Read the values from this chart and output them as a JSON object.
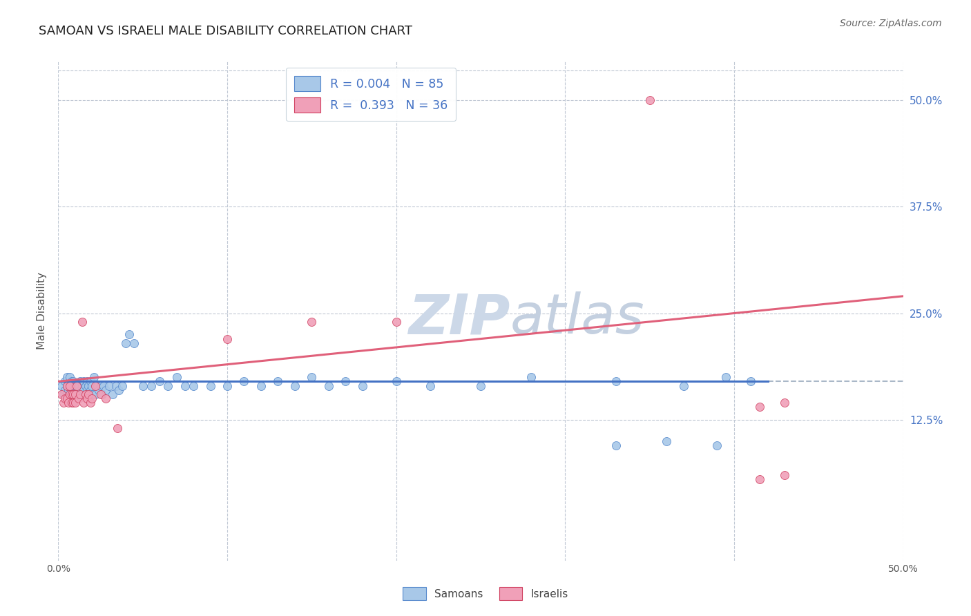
{
  "title": "SAMOAN VS ISRAELI MALE DISABILITY CORRELATION CHART",
  "source": "Source: ZipAtlas.com",
  "ylabel": "Male Disability",
  "legend_samoans": "Samoans",
  "legend_israelis": "Israelis",
  "samoan_R": 0.004,
  "samoan_N": 85,
  "israeli_R": 0.393,
  "israeli_N": 36,
  "samoan_color": "#a8c8e8",
  "israeli_color": "#f0a0b8",
  "samoan_line_color": "#4472c4",
  "israeli_line_color": "#e0607a",
  "samoan_edge_color": "#5588cc",
  "israeli_edge_color": "#d04060",
  "watermark_zip_color": "#c8d8e8",
  "watermark_atlas_color": "#c0d0e0",
  "background_color": "#ffffff",
  "grid_color": "#c0c8d4",
  "right_label_color": "#4472c4",
  "xmin": 0.0,
  "xmax": 0.5,
  "ymin": -0.04,
  "ymax": 0.545,
  "yticks": [
    0.125,
    0.25,
    0.375,
    0.5
  ],
  "ytick_labels": [
    "12.5%",
    "25.0%",
    "37.5%",
    "50.0%"
  ],
  "samoan_line_y0": 0.17,
  "samoan_line_y1": 0.17,
  "israeli_line_y0": 0.17,
  "israeli_line_y1": 0.27,
  "samoan_x": [
    0.002,
    0.003,
    0.004,
    0.004,
    0.005,
    0.005,
    0.005,
    0.006,
    0.006,
    0.007,
    0.007,
    0.007,
    0.008,
    0.008,
    0.008,
    0.009,
    0.009,
    0.009,
    0.01,
    0.01,
    0.01,
    0.011,
    0.011,
    0.012,
    0.012,
    0.013,
    0.013,
    0.014,
    0.014,
    0.015,
    0.015,
    0.016,
    0.016,
    0.017,
    0.017,
    0.018,
    0.018,
    0.019,
    0.019,
    0.02,
    0.02,
    0.021,
    0.022,
    0.023,
    0.024,
    0.025,
    0.026,
    0.027,
    0.028,
    0.03,
    0.032,
    0.034,
    0.036,
    0.038,
    0.04,
    0.042,
    0.045,
    0.05,
    0.055,
    0.06,
    0.065,
    0.07,
    0.075,
    0.08,
    0.09,
    0.1,
    0.11,
    0.12,
    0.13,
    0.14,
    0.15,
    0.16,
    0.17,
    0.18,
    0.2,
    0.22,
    0.25,
    0.28,
    0.33,
    0.37,
    0.395,
    0.41,
    0.33,
    0.36,
    0.39
  ],
  "samoan_y": [
    0.165,
    0.155,
    0.16,
    0.17,
    0.155,
    0.165,
    0.175,
    0.15,
    0.16,
    0.155,
    0.165,
    0.175,
    0.15,
    0.16,
    0.17,
    0.155,
    0.16,
    0.17,
    0.15,
    0.16,
    0.165,
    0.155,
    0.165,
    0.155,
    0.165,
    0.16,
    0.17,
    0.155,
    0.165,
    0.16,
    0.17,
    0.155,
    0.165,
    0.16,
    0.17,
    0.155,
    0.165,
    0.16,
    0.17,
    0.155,
    0.165,
    0.175,
    0.155,
    0.165,
    0.16,
    0.165,
    0.155,
    0.165,
    0.16,
    0.165,
    0.155,
    0.165,
    0.16,
    0.165,
    0.215,
    0.225,
    0.215,
    0.165,
    0.165,
    0.17,
    0.165,
    0.175,
    0.165,
    0.165,
    0.165,
    0.165,
    0.17,
    0.165,
    0.17,
    0.165,
    0.175,
    0.165,
    0.17,
    0.165,
    0.17,
    0.165,
    0.165,
    0.175,
    0.17,
    0.165,
    0.175,
    0.17,
    0.095,
    0.1,
    0.095
  ],
  "israeli_x": [
    0.002,
    0.003,
    0.004,
    0.005,
    0.005,
    0.006,
    0.007,
    0.007,
    0.008,
    0.008,
    0.009,
    0.009,
    0.01,
    0.01,
    0.011,
    0.012,
    0.013,
    0.014,
    0.015,
    0.016,
    0.017,
    0.018,
    0.019,
    0.02,
    0.022,
    0.025,
    0.028,
    0.035,
    0.1,
    0.15,
    0.2,
    0.35,
    0.415,
    0.43,
    0.415,
    0.43
  ],
  "israeli_y": [
    0.155,
    0.145,
    0.15,
    0.15,
    0.165,
    0.145,
    0.155,
    0.165,
    0.145,
    0.155,
    0.145,
    0.155,
    0.145,
    0.155,
    0.165,
    0.15,
    0.155,
    0.24,
    0.145,
    0.155,
    0.15,
    0.155,
    0.145,
    0.15,
    0.165,
    0.155,
    0.15,
    0.115,
    0.22,
    0.24,
    0.24,
    0.5,
    0.14,
    0.145,
    0.055,
    0.06
  ]
}
